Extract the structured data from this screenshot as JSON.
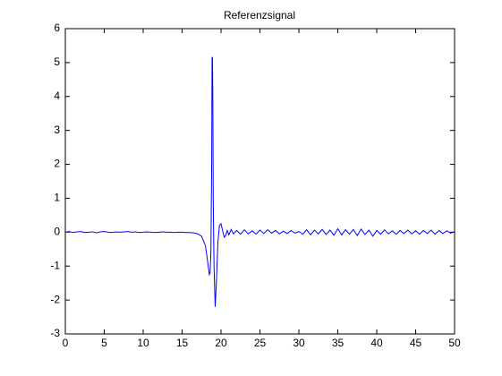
{
  "chart_data": {
    "type": "line",
    "title": "Referenzsignal",
    "x": [
      0,
      0.5,
      1,
      1.5,
      2,
      2.5,
      3,
      3.5,
      4,
      4.5,
      5,
      5.5,
      6,
      6.5,
      7,
      7.5,
      8,
      8.5,
      9,
      9.5,
      10,
      10.5,
      11,
      11.5,
      12,
      12.5,
      13,
      13.5,
      14,
      14.5,
      15,
      15.5,
      16,
      16.5,
      17,
      17.5,
      18,
      18.3,
      18.5,
      18.6,
      18.7,
      18.8,
      18.85,
      18.9,
      18.95,
      19.0,
      19.1,
      19.25,
      19.4,
      19.6,
      19.8,
      20.0,
      20.2,
      20.4,
      20.6,
      20.8,
      21.0,
      21.3,
      21.6,
      22,
      22.5,
      23,
      23.5,
      24,
      24.5,
      25,
      25.5,
      26,
      26.5,
      27,
      27.5,
      28,
      28.5,
      29,
      29.5,
      30,
      30.5,
      31,
      31.5,
      32,
      32.5,
      33,
      33.5,
      34,
      34.5,
      35,
      35.5,
      36,
      36.5,
      37,
      37.5,
      38,
      38.5,
      39,
      39.5,
      40,
      40.5,
      41,
      41.5,
      42,
      42.5,
      43,
      43.5,
      44,
      44.5,
      45,
      45.5,
      46,
      46.5,
      47,
      47.5,
      48,
      48.5,
      49,
      49.5,
      50
    ],
    "series": [
      {
        "color": "#0000ff",
        "values": [
          0,
          0.02,
          -0.01,
          0.01,
          0.02,
          -0.01,
          0,
          0.01,
          -0.02,
          0.01,
          0.02,
          0,
          -0.01,
          0.01,
          0,
          0.01,
          0.02,
          0,
          0.01,
          -0.01,
          0,
          0.01,
          0,
          -0.01,
          0,
          0.01,
          0,
          0,
          -0.01,
          0,
          0,
          -0.01,
          -0.01,
          -0.02,
          -0.05,
          -0.12,
          -0.4,
          -0.9,
          -1.25,
          -1.2,
          -0.6,
          2,
          5.15,
          5.15,
          3.9,
          1.0,
          -1.0,
          -2.2,
          -1.5,
          -0.3,
          0.2,
          0.25,
          0.05,
          -0.15,
          -0.1,
          0.05,
          -0.08,
          0.08,
          -0.05,
          0.05,
          -0.06,
          0.07,
          -0.05,
          0.04,
          -0.06,
          0.06,
          -0.04,
          0.07,
          -0.03,
          0.05,
          -0.05,
          0.03,
          -0.04,
          0.05,
          -0.03,
          0.02,
          -0.06,
          0.07,
          -0.08,
          0.06,
          -0.05,
          0.08,
          -0.07,
          0.06,
          -0.09,
          0.1,
          -0.08,
          0.07,
          -0.06,
          0.08,
          -0.1,
          0.09,
          -0.07,
          0.06,
          -0.12,
          0.05,
          -0.06,
          0.07,
          -0.05,
          0.04,
          -0.06,
          0.05,
          -0.04,
          0.06,
          -0.05,
          0.04,
          -0.06,
          0.05,
          -0.04,
          0.06,
          -0.06,
          0.05,
          -0.04,
          0.04,
          -0.03,
          0.02
        ]
      }
    ],
    "xlim": [
      0,
      50
    ],
    "xticks": [
      0,
      5,
      10,
      15,
      20,
      25,
      30,
      35,
      40,
      45,
      50
    ],
    "ylim": [
      -3,
      6
    ],
    "yticks": [
      -3,
      -2,
      -1,
      0,
      1,
      2,
      3,
      4,
      5,
      6
    ]
  }
}
